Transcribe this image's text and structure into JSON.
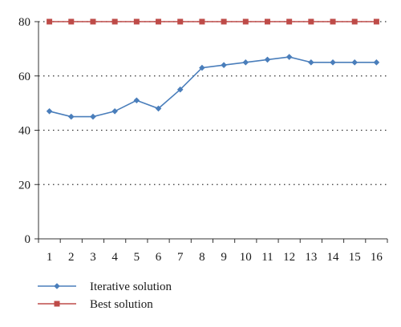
{
  "chart_data": {
    "type": "line",
    "x": [
      1,
      2,
      3,
      4,
      5,
      6,
      7,
      8,
      9,
      10,
      11,
      12,
      13,
      14,
      15,
      16
    ],
    "xtick_labels": [
      "1",
      "2",
      "3",
      "4",
      "5",
      "6",
      "7",
      "8",
      "9",
      "10",
      "11",
      "12",
      "13",
      "14",
      "15",
      "16"
    ],
    "ylim": [
      0,
      80
    ],
    "yticks": [
      0,
      20,
      40,
      60,
      80
    ],
    "ytick_labels": [
      "0",
      "20",
      "40",
      "60",
      "80"
    ],
    "grid": "horizontal dotted",
    "legend_placement": "bottom-left",
    "series": [
      {
        "name": "Iterative solution",
        "color": "#4a7ebb",
        "marker": "diamond",
        "values": [
          47,
          45,
          45,
          47,
          51,
          48,
          55,
          63,
          64,
          65,
          66,
          67,
          65,
          65,
          65,
          65
        ]
      },
      {
        "name": "Best solution",
        "color": "#be4b48",
        "marker": "square",
        "values": [
          80,
          80,
          80,
          80,
          80,
          80,
          80,
          80,
          80,
          80,
          80,
          80,
          80,
          80,
          80,
          80
        ]
      }
    ]
  }
}
